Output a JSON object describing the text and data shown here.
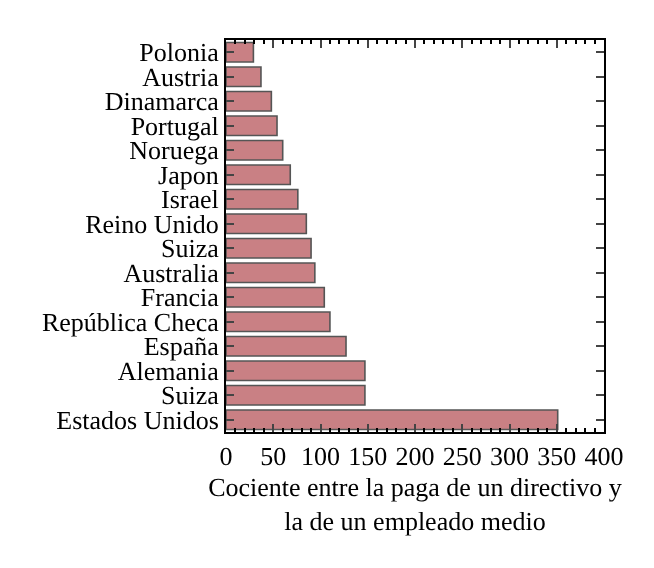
{
  "chart_data": {
    "type": "bar",
    "orientation": "horizontal",
    "xlabel": "Cociente entre la paga de un directivo y\nla de un empleado medio",
    "categories": [
      "Polonia",
      "Austria",
      "Dinamarca",
      "Portugal",
      "Noruega",
      "Japon",
      "Israel",
      "Reino Unido",
      "Suiza",
      "Australia",
      "Francia",
      "República Checa",
      "España",
      "Alemania",
      "Suiza",
      "Estados Unidos"
    ],
    "values": [
      29,
      37,
      48,
      54,
      60,
      68,
      76,
      85,
      90,
      94,
      104,
      110,
      127,
      147,
      147,
      351
    ],
    "color": "#c98084",
    "xlim": [
      0,
      400
    ],
    "xticks": [
      0,
      50,
      100,
      150,
      200,
      250,
      300,
      350,
      400
    ]
  }
}
